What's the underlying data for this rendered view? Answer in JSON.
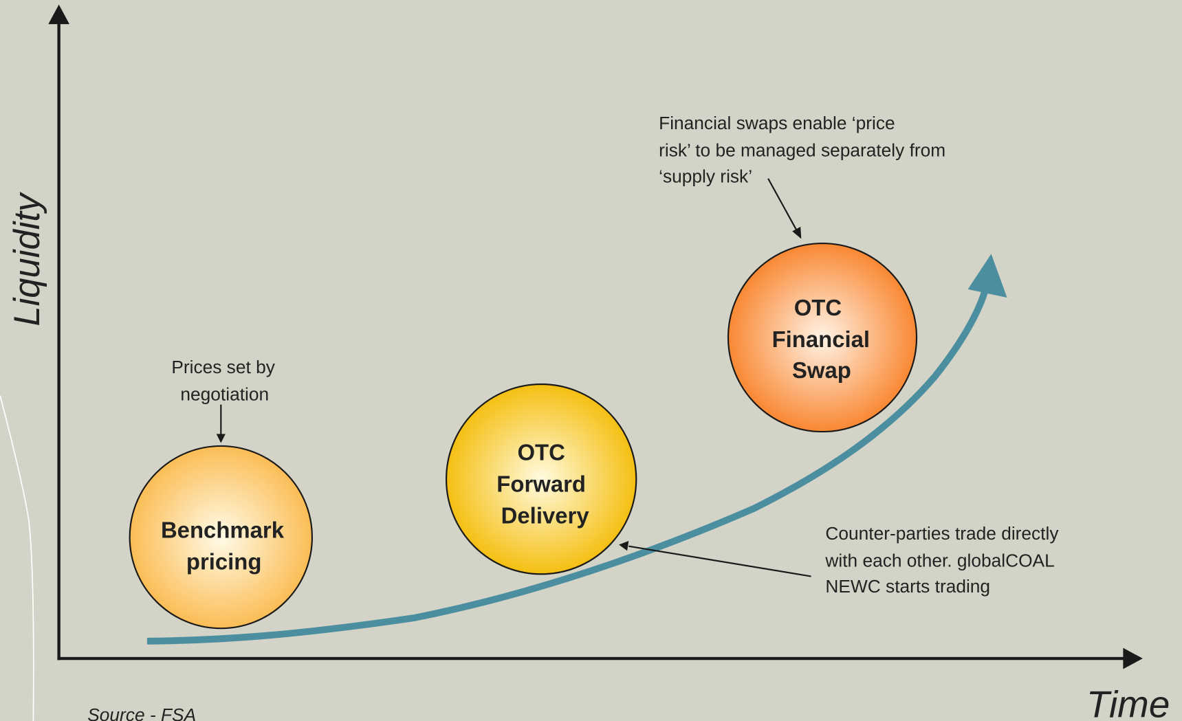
{
  "axes": {
    "y_label": "Liquidity",
    "x_label": "Time"
  },
  "nodes": [
    {
      "lines": [
        "Benchmark",
        "pricing"
      ]
    },
    {
      "lines": [
        "OTC",
        "Forward",
        "Delivery"
      ]
    },
    {
      "lines": [
        "OTC",
        "Financial",
        "Swap"
      ]
    }
  ],
  "annotations": [
    {
      "lines": [
        "Prices set by",
        "negotiation"
      ]
    },
    {
      "lines": [
        "Financial swaps enable ‘price",
        "risk’ to be managed separately from",
        "‘supply risk’"
      ]
    },
    {
      "lines": [
        "Counter-parties trade directly",
        "with each other. globalCOAL",
        "NEWC starts trading"
      ]
    }
  ],
  "source": "Source - FSA"
}
